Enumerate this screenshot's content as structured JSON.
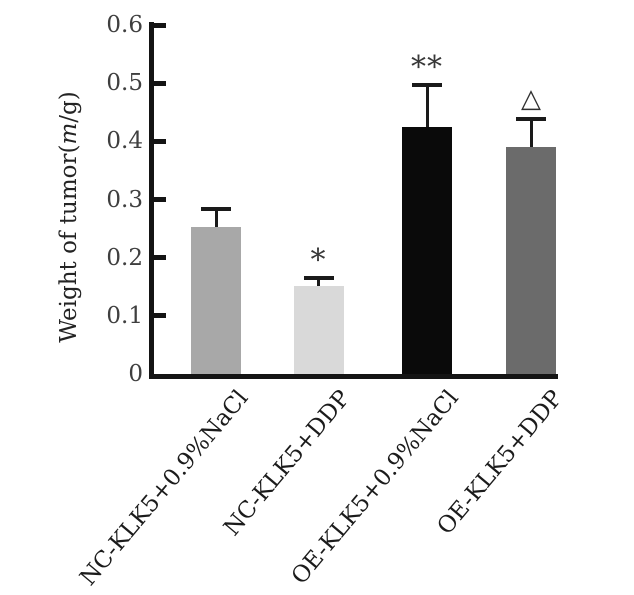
{
  "chart_data": {
    "type": "bar",
    "ylabel": "Weight of tumor(m/g)",
    "ylabel_parts": {
      "pre": "Weight of tumor(",
      "italic": "m",
      "post": "/g)"
    },
    "categories": [
      "NC-KLK5+0.9%NaCl",
      "NC-KLK5+DDP",
      "OE-KLK5+0.9%NaCl",
      "OE-KLK5+DDP"
    ],
    "values": [
      0.253,
      0.152,
      0.425,
      0.39
    ],
    "errors": [
      0.03,
      0.013,
      0.072,
      0.048
    ],
    "significance": [
      "",
      "*",
      "**",
      "△"
    ],
    "bar_colors": [
      "#a8a8a8",
      "#d9d9d9",
      "#0a0a0a",
      "#6b6b6b"
    ],
    "ylim": [
      0,
      0.6
    ],
    "yticks": [
      {
        "value": 0,
        "label": "0"
      },
      {
        "value": 0.1,
        "label": "0.1"
      },
      {
        "value": 0.2,
        "label": "0.2"
      },
      {
        "value": 0.3,
        "label": "0.3"
      },
      {
        "value": 0.4,
        "label": "0.4"
      },
      {
        "value": 0.5,
        "label": "0.5"
      },
      {
        "value": 0.6,
        "label": "0.6"
      }
    ],
    "grid": false,
    "legend_position": "none",
    "error_bar_style": "upper whisker with cap",
    "x_tick_label_rotation_deg": 50
  },
  "colors": {
    "background": "#ffffff",
    "axis": "#141414",
    "tick_text": "#3f3f3f",
    "category_text": "#1b1b1b",
    "marker_text": "#383838"
  }
}
